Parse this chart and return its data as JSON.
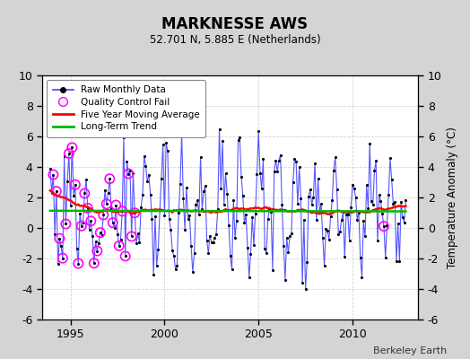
{
  "title": "MARKNESSE AWS",
  "subtitle": "52.701 N, 5.885 E (Netherlands)",
  "ylabel": "Temperature Anomaly (°C)",
  "attribution": "Berkeley Earth",
  "ylim": [
    -6,
    10
  ],
  "xlim": [
    1993.5,
    2013.5
  ],
  "xticks": [
    1995,
    2000,
    2005,
    2010
  ],
  "yticks": [
    -6,
    -4,
    -2,
    0,
    2,
    4,
    6,
    8,
    10
  ],
  "fig_bg_color": "#d4d4d4",
  "plot_bg_color": "#ffffff",
  "raw_line_color": "#4444ff",
  "raw_dot_color": "#000000",
  "moving_avg_color": "#ff0000",
  "trend_color": "#00bb00",
  "qc_fail_color": "#ff00ff",
  "legend_labels": [
    "Raw Monthly Data",
    "Quality Control Fail",
    "Five Year Moving Average",
    "Long-Term Trend"
  ],
  "seed": 12,
  "n_months": 228,
  "start_year": 1993.917
}
